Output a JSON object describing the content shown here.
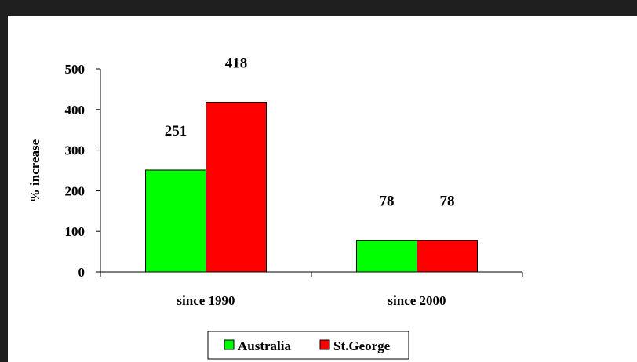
{
  "chart_data": {
    "type": "bar",
    "categories": [
      "since 1990",
      "since 2000"
    ],
    "series": [
      {
        "name": "Australia",
        "values": [
          251,
          78
        ],
        "color": "#00ff00"
      },
      {
        "name": "St.George",
        "values": [
          418,
          78
        ],
        "color": "#ff0000"
      }
    ],
    "data_labels": [
      [
        "251",
        "78"
      ],
      [
        "418",
        "78"
      ]
    ],
    "ylabel": "% increase",
    "ylim": [
      0,
      500
    ],
    "yticks": [
      0,
      100,
      200,
      300,
      400,
      500
    ],
    "ytick_labels": [
      "0",
      "100",
      "200",
      "300",
      "400",
      "500"
    ],
    "grid": false,
    "legend_position": "bottom"
  },
  "colors": {
    "background_frame": "#1f1f1f",
    "plot_background": "#ffffff",
    "axis": "#000000"
  }
}
